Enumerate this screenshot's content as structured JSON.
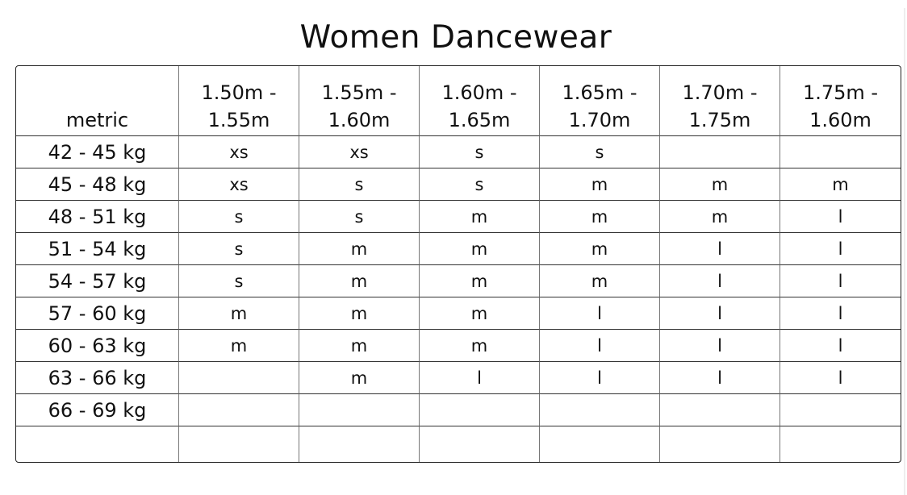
{
  "title": "Women Dancewear",
  "corner_label": "metric",
  "columns": [
    [
      "1.50m -",
      "1.55m"
    ],
    [
      "1.55m -",
      "1.60m"
    ],
    [
      "1.60m -",
      "1.65m"
    ],
    [
      "1.65m -",
      "1.70m"
    ],
    [
      "1.70m -",
      "1.75m"
    ],
    [
      "1.75m -",
      "1.60m"
    ]
  ],
  "rows": [
    {
      "label": "42 - 45 kg",
      "cells": [
        "xs",
        "xs",
        "s",
        "s",
        "",
        ""
      ]
    },
    {
      "label": "45 - 48 kg",
      "cells": [
        "xs",
        "s",
        "s",
        "m",
        "m",
        "m"
      ]
    },
    {
      "label": "48 - 51 kg",
      "cells": [
        "s",
        "s",
        "m",
        "m",
        "m",
        "l"
      ]
    },
    {
      "label": "51 - 54 kg",
      "cells": [
        "s",
        "m",
        "m",
        "m",
        "l",
        "l"
      ]
    },
    {
      "label": "54 - 57 kg",
      "cells": [
        "s",
        "m",
        "m",
        "m",
        "l",
        "l"
      ]
    },
    {
      "label": "57 - 60 kg",
      "cells": [
        "m",
        "m",
        "m",
        "l",
        "l",
        "l"
      ]
    },
    {
      "label": "60 - 63 kg",
      "cells": [
        "m",
        "m",
        "m",
        "l",
        "l",
        "l"
      ]
    },
    {
      "label": "63 - 66 kg",
      "cells": [
        "",
        "m",
        "l",
        "l",
        "l",
        "l"
      ]
    },
    {
      "label": "66 - 69 kg",
      "cells": [
        "",
        "",
        "",
        "",
        "",
        ""
      ]
    },
    {
      "label": "",
      "cells": [
        "",
        "",
        "",
        "",
        "",
        ""
      ]
    }
  ]
}
